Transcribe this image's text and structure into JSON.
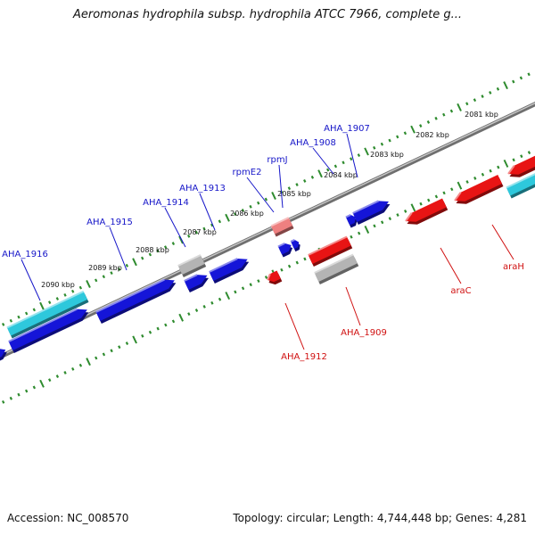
{
  "header": {
    "title": "Aeromonas hydrophila subsp. hydrophila ATCC 7966, complete g..."
  },
  "footer": {
    "accession": "Accession: NC_008570",
    "topology": "Topology: circular; Length: 4,744,448 bp; Genes: 4,281"
  },
  "colors": {
    "backbone": "#8a8a8a",
    "tick": "#2e8b2e",
    "forward_gene": "#1515d8",
    "forward_label": "#1515c8",
    "reverse_gene": "#e81414",
    "reverse_label": "#d01010",
    "rna_gene": "#2ec8dc",
    "pseudo_gene": "#b4b4b4",
    "rna_reverse": "#ee8080"
  },
  "scale": {
    "unit": "kbp",
    "ticks": [
      "2081 kbp",
      "2082 kbp",
      "2083 kbp",
      "2084 kbp",
      "2085 kbp",
      "2086 kbp",
      "2087 kbp",
      "2088 kbp",
      "2089 kbp",
      "2090 kbp"
    ]
  },
  "gene_labels": {
    "forward": [
      "AHA_1916",
      "AHA_1915",
      "AHA_1914",
      "AHA_1913",
      "rpmE2",
      "rpmJ",
      "AHA_1908",
      "AHA_1907"
    ],
    "reverse": [
      "AHA_1912",
      "AHA_1909",
      "araC",
      "araH"
    ]
  }
}
